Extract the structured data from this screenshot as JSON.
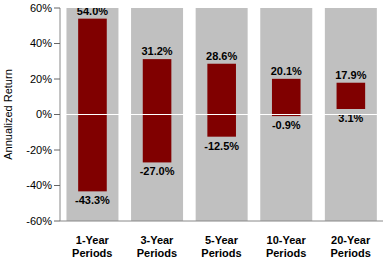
{
  "chart_data": {
    "type": "bar",
    "y_label": "Annualized Return",
    "categories": [
      "1-Year Periods",
      "3-Year Periods",
      "5-Year Periods",
      "10-Year Periods",
      "20-Year Periods"
    ],
    "values": [
      [
        -43.3,
        54.0
      ],
      [
        -27.0,
        31.2
      ],
      [
        -12.5,
        28.6
      ],
      [
        -0.9,
        20.1
      ],
      [
        3.1,
        17.9
      ]
    ],
    "value_labels": [
      [
        "-43.3%",
        "54.0%"
      ],
      [
        "-27.0%",
        "31.2%"
      ],
      [
        "-12.5%",
        "28.6%"
      ],
      [
        "-0.9%",
        "20.1%"
      ],
      [
        "3.1%",
        "17.9%"
      ]
    ],
    "color": "#800000",
    "data_labels": true,
    "ylim": [
      -60,
      60
    ],
    "yticks": [
      {
        "value": -60,
        "label": "-60%"
      },
      {
        "value": -40,
        "label": "-40%"
      },
      {
        "value": -20,
        "label": "-20%"
      },
      {
        "value": 0,
        "label": "0%"
      },
      {
        "value": 20,
        "label": "20%"
      },
      {
        "value": 40,
        "label": "40%"
      },
      {
        "value": 60,
        "label": "60%"
      }
    ]
  }
}
